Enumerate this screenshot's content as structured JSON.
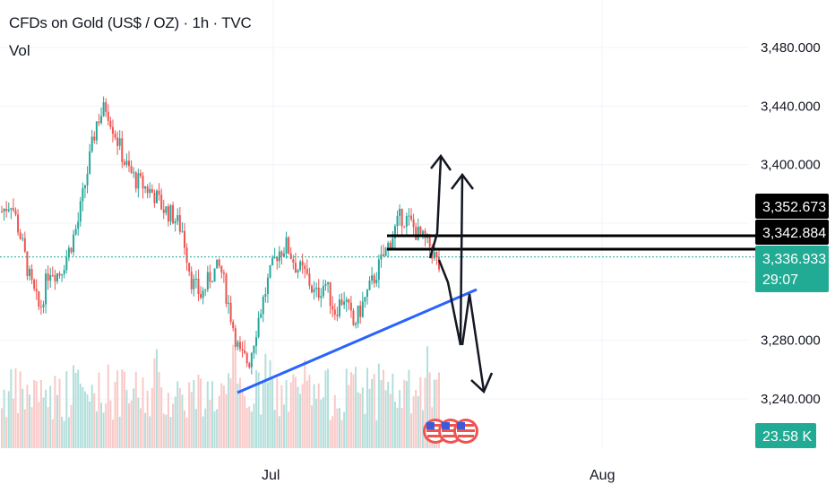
{
  "header": {
    "title": "CFDs on Gold (US$ / OZ) · 1h · TVC",
    "indicator": "Vol"
  },
  "colors": {
    "up": "#26a69a",
    "down": "#ef5350",
    "trendline": "#2962ff",
    "current_price_tag": "#22ab94",
    "level_tag": "#000000",
    "volume_up": "#b2dfdb",
    "volume_down": "#f8c9c7",
    "grid": "#f0f3fa"
  },
  "price_axis": {
    "labels": [
      "3,480.000",
      "3,440.000",
      "3,400.000",
      "3,280.000",
      "3,240.000"
    ],
    "values": [
      3480,
      3440,
      3400,
      3280,
      3240
    ]
  },
  "time_axis": {
    "labels": [
      "Jul",
      "Aug"
    ]
  },
  "tags": {
    "level_high": "3,352.673",
    "level_low": "3,342.884",
    "current_price": "3,336.933",
    "countdown": "29:07",
    "volume": "23.58 K"
  },
  "chart_data": {
    "type": "candlestick",
    "symbol": "CFDs on Gold (US$ / OZ)",
    "interval": "1h",
    "source": "TVC",
    "y_axis_ticks": [
      3240,
      3280,
      3400,
      3440,
      3480
    ],
    "x_axis_ticks": [
      "Jul",
      "Aug"
    ],
    "close_series_approx": [
      3368,
      3375,
      3350,
      3320,
      3300,
      3330,
      3325,
      3340,
      3360,
      3395,
      3430,
      3440,
      3420,
      3400,
      3390,
      3385,
      3380,
      3370,
      3365,
      3355,
      3320,
      3310,
      3325,
      3330,
      3300,
      3270,
      3265,
      3295,
      3320,
      3340,
      3345,
      3330,
      3325,
      3310,
      3320,
      3300,
      3310,
      3290,
      3305,
      3320,
      3335,
      3350,
      3365,
      3360,
      3350,
      3345,
      3330
    ],
    "horizontal_levels": [
      3352.673,
      3342.884
    ],
    "current_price": 3336.933,
    "last_volume": "23.58 K"
  }
}
